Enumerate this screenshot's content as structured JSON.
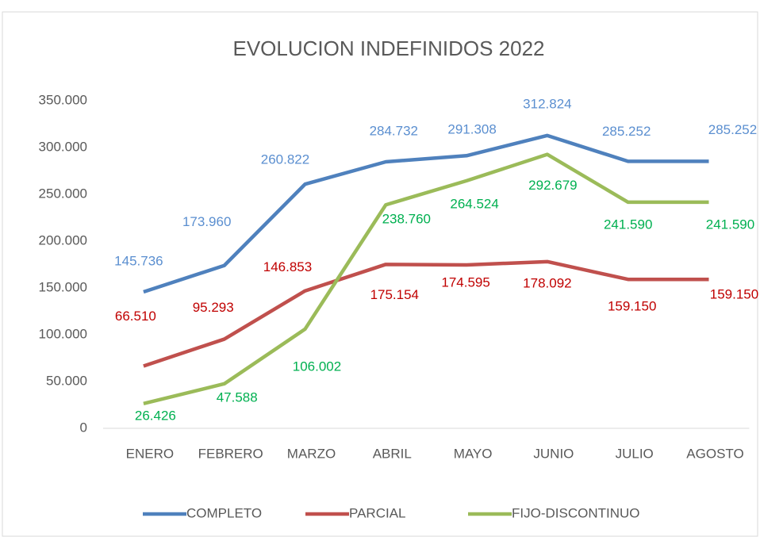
{
  "chart_data": {
    "type": "line",
    "title": "EVOLUCION INDEFINIDOS 2022",
    "categories": [
      "ENERO",
      "FEBRERO",
      "MARZO",
      "ABRIL",
      "MAYO",
      "JUNIO",
      "JULIO",
      "AGOSTO"
    ],
    "series": [
      {
        "name": "COMPLETO",
        "color": "#4f81bd",
        "label_color": "#5b8fd0",
        "values": [
          145736,
          173960,
          260822,
          284732,
          291308,
          312824,
          285252,
          285252
        ],
        "value_labels": [
          "145.736",
          "173.960",
          "260.822",
          "284.732",
          "291.308",
          "312.824",
          "285.252",
          "285.252"
        ]
      },
      {
        "name": "PARCIAL",
        "color": "#c0504d",
        "label_color": "#c00000",
        "values": [
          66510,
          95293,
          146853,
          175154,
          174595,
          178092,
          159150,
          159150
        ],
        "value_labels": [
          "66.510",
          "95.293",
          "146.853",
          "175.154",
          "174.595",
          "178.092",
          "159.150",
          "159.150"
        ]
      },
      {
        "name": "FIJO-DISCONTINUO",
        "color": "#9bbb59",
        "label_color": "#00b050",
        "values": [
          26426,
          47588,
          106002,
          238760,
          264524,
          292679,
          241590,
          241590
        ],
        "value_labels": [
          "26.426",
          "47.588",
          "106.002",
          "238.760",
          "264.524",
          "292.679",
          "241.590",
          "241.590"
        ]
      }
    ],
    "ylim": [
      0,
      350000
    ],
    "yticks": [
      0,
      {
        "value": 50000,
        "label": "50.000"
      },
      {
        "value": 100000,
        "label": "100.000"
      },
      {
        "value": 150000,
        "label": "150.000"
      },
      {
        "value": 200000,
        "label": "200.000"
      },
      {
        "value": 250000,
        "label": "250.000"
      },
      {
        "value": 300000,
        "label": "300.000"
      },
      {
        "value": 350000,
        "label": "350.000"
      }
    ],
    "legend": "bottom"
  }
}
